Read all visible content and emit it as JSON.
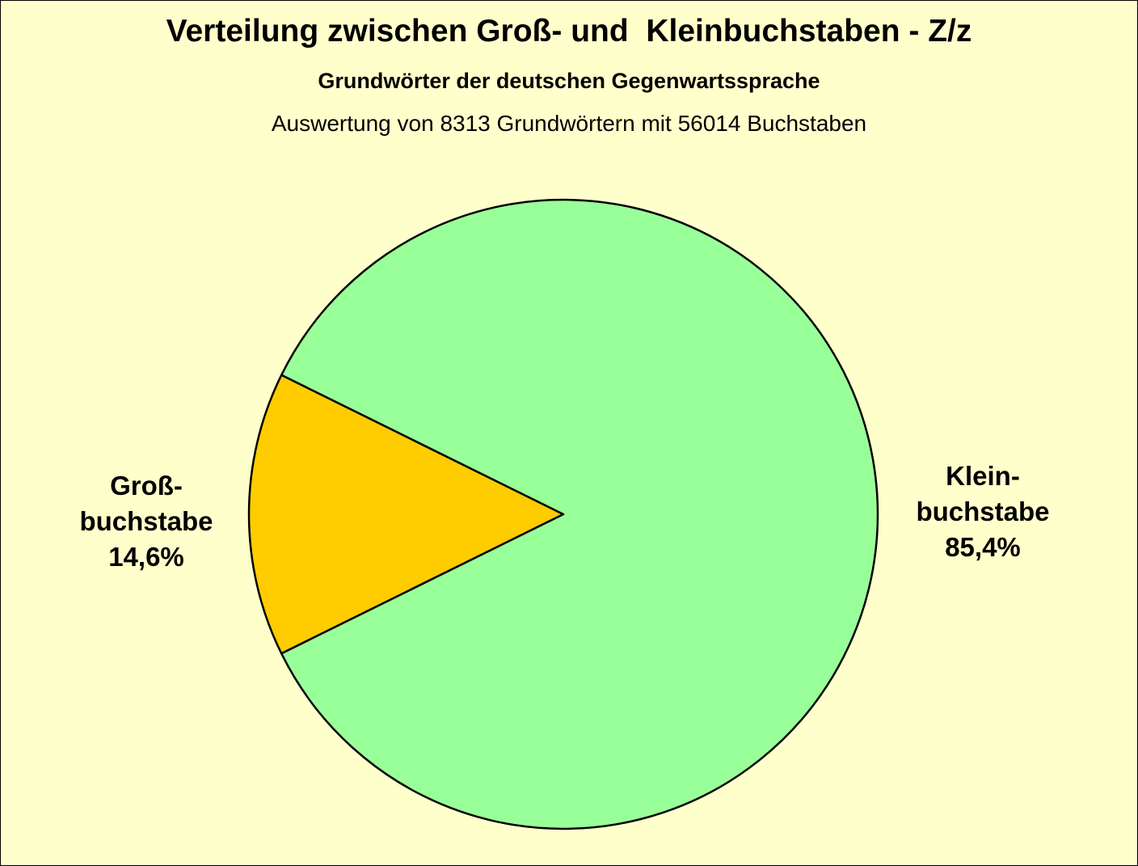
{
  "chart_data": {
    "type": "pie",
    "title": "Verteilung zwischen Groß- und  Kleinbuchstaben - Z/z",
    "subtitle": "Grundwörter der deutschen Gegenwartssprache",
    "note": "Auswertung von 8313 Grundwörtern mit 56014 Buchstaben",
    "slices": [
      {
        "label_line1": "Groß-",
        "label_line2": "buchstabe",
        "value": 14.6,
        "value_label": "14,6%",
        "color": "#ffcc00"
      },
      {
        "label_line1": "Klein-",
        "label_line2": "buchstabe",
        "value": 85.4,
        "value_label": "85,4%",
        "color": "#99ff99"
      }
    ],
    "legend": "none",
    "background_color": "#ffffcc"
  }
}
